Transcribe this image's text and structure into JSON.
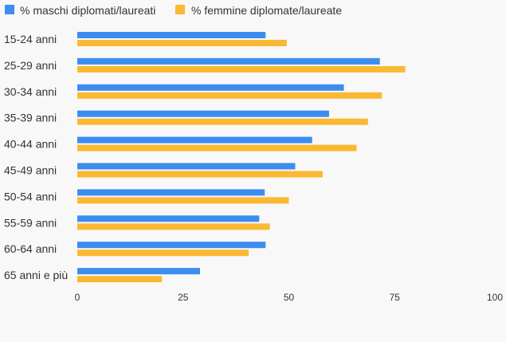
{
  "colors": {
    "maschi": "#3c8df0",
    "femmine": "#fbb833",
    "background": "#f8f8f8",
    "text": "#333333"
  },
  "legend": {
    "position": "top-left",
    "items": [
      {
        "label": "% maschi diplomati/laureati",
        "color": "#3c8df0"
      },
      {
        "label": "% femmine diplomate/laureate",
        "color": "#fbb833"
      }
    ]
  },
  "chart_data": {
    "type": "bar",
    "orientation": "horizontal",
    "categories": [
      "15-24 anni",
      "25-29 anni",
      "30-34 anni",
      "35-39 anni",
      "40-44 anni",
      "45-49 anni",
      "50-54 anni",
      "55-59 anni",
      "60-64 anni",
      "65 anni e più"
    ],
    "series": [
      {
        "name": "% maschi diplomati/laureati",
        "values": [
          44.5,
          71.5,
          63,
          59.5,
          55.5,
          51.5,
          44.3,
          43,
          44.5,
          29
        ]
      },
      {
        "name": "% femmine diplomate/laureate",
        "values": [
          49.5,
          77.5,
          72,
          68.7,
          66,
          58,
          50,
          45.5,
          40.5,
          20
        ]
      }
    ],
    "xlim": [
      0,
      100
    ],
    "xticks": [
      0,
      25,
      50,
      75,
      100
    ],
    "grid": false,
    "title": "",
    "xlabel": "",
    "ylabel": ""
  }
}
